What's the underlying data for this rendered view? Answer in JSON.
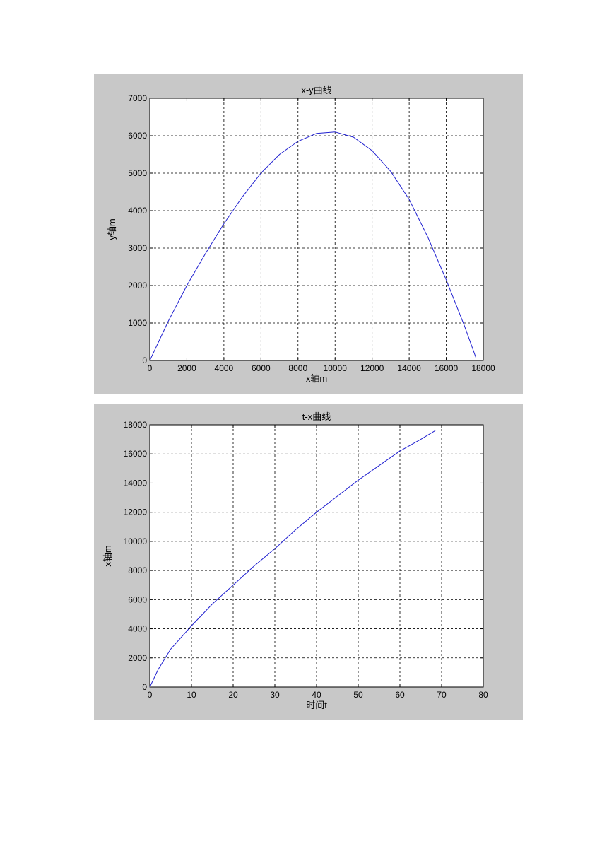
{
  "chart_data": [
    {
      "type": "line",
      "title": "x-y曲线",
      "xlabel": "x轴m",
      "ylabel": "y轴m",
      "xlim": [
        0,
        18000
      ],
      "ylim": [
        0,
        7000
      ],
      "xticks": [
        0,
        2000,
        4000,
        6000,
        8000,
        10000,
        12000,
        14000,
        16000,
        18000
      ],
      "yticks": [
        0,
        1000,
        2000,
        3000,
        4000,
        5000,
        6000,
        7000
      ],
      "grid": true,
      "color": "#2020d0",
      "series": [
        {
          "x": [
            0,
            1000,
            2000,
            3000,
            4000,
            5000,
            6000,
            7000,
            8000,
            9000,
            10000,
            11000,
            12000,
            13000,
            14000,
            15000,
            16000,
            17000,
            17600
          ],
          "y": [
            0,
            1050,
            2000,
            2850,
            3650,
            4370,
            5000,
            5500,
            5850,
            6060,
            6100,
            5960,
            5600,
            5050,
            4300,
            3300,
            2150,
            900,
            80
          ]
        }
      ]
    },
    {
      "type": "line",
      "title": "t-x曲线",
      "xlabel": "时间t",
      "ylabel": "x轴m",
      "xlim": [
        0,
        80
      ],
      "ylim": [
        0,
        18000
      ],
      "xticks": [
        0,
        10,
        20,
        30,
        40,
        50,
        60,
        70,
        80
      ],
      "yticks": [
        0,
        2000,
        4000,
        6000,
        8000,
        10000,
        12000,
        14000,
        16000,
        18000
      ],
      "grid": true,
      "color": "#2020d0",
      "series": [
        {
          "x": [
            0,
            2,
            5,
            10,
            15,
            20,
            25,
            30,
            35,
            40,
            45,
            50,
            55,
            60,
            65,
            68.5
          ],
          "y": [
            0,
            1200,
            2600,
            4200,
            5700,
            7000,
            8300,
            9500,
            10800,
            12000,
            13100,
            14200,
            15200,
            16200,
            17000,
            17600
          ]
        }
      ]
    }
  ]
}
